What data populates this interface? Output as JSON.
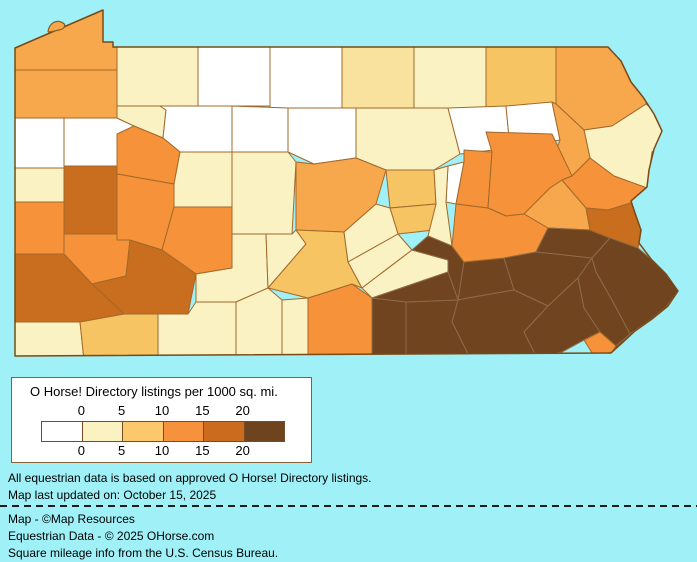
{
  "page": {
    "background_color": "#9ff0f7"
  },
  "map": {
    "region": "pennsylvania-county-choropleth",
    "water_color": "#9ff0f7",
    "state_border_color": "#7a4a15",
    "county_border_color": "#a2692b",
    "brown_region_border_color": "#8d6b49",
    "value_buckets": {
      "0": "#ffffff",
      "0-5": "#fbf2c4",
      "5-10": "#fbc96b",
      "10-15": "#f6913d",
      "15-20": "#ca6b1e",
      "20+": "#6e441e"
    },
    "counties": [
      {
        "id": "erie",
        "color": "#f8a84c"
      },
      {
        "id": "crawford",
        "color": "#f8a84c"
      },
      {
        "id": "warren",
        "color": "#fbf2c4"
      },
      {
        "id": "mckean",
        "color": "#ffffff"
      },
      {
        "id": "potter",
        "color": "#ffffff"
      },
      {
        "id": "tioga",
        "color": "#f8e29e"
      },
      {
        "id": "bradford",
        "color": "#fbf2c4"
      },
      {
        "id": "susquehanna",
        "color": "#f7c463"
      },
      {
        "id": "wayne",
        "color": "#f8a84c"
      },
      {
        "id": "pike",
        "color": "#fbf2c4"
      },
      {
        "id": "mercer",
        "color": "#ffffff"
      },
      {
        "id": "venango",
        "color": "#ffffff"
      },
      {
        "id": "forest",
        "color": "#fbf2c4"
      },
      {
        "id": "elk",
        "color": "#ffffff"
      },
      {
        "id": "cameron",
        "color": "#ffffff"
      },
      {
        "id": "clinton",
        "color": "#ffffff"
      },
      {
        "id": "lycoming",
        "color": "#fbf2c4"
      },
      {
        "id": "sullivan",
        "color": "#ffffff"
      },
      {
        "id": "wyoming",
        "color": "#ffffff"
      },
      {
        "id": "lackawanna",
        "color": "#f8a84c"
      },
      {
        "id": "lawrence",
        "color": "#fbf2c4"
      },
      {
        "id": "butler",
        "color": "#c96d1e"
      },
      {
        "id": "clarion",
        "color": "#f5923a"
      },
      {
        "id": "jefferson",
        "color": "#fbf2c4"
      },
      {
        "id": "clearfield",
        "color": "#fbf2c4"
      },
      {
        "id": "centre",
        "color": "#f8a84c"
      },
      {
        "id": "union",
        "color": "#f7c463"
      },
      {
        "id": "snyder",
        "color": "#f7c463"
      },
      {
        "id": "montour",
        "color": "#ffffff"
      },
      {
        "id": "northumberland",
        "color": "#fbf2c4"
      },
      {
        "id": "columbia",
        "color": "#f5923a"
      },
      {
        "id": "luzerne",
        "color": "#f5923a"
      },
      {
        "id": "carbon",
        "color": "#f8a84c"
      },
      {
        "id": "monroe",
        "color": "#f5923a"
      },
      {
        "id": "beaver",
        "color": "#f5923a"
      },
      {
        "id": "armstrong",
        "color": "#f5923a"
      },
      {
        "id": "indiana",
        "color": "#f5923a"
      },
      {
        "id": "cambria",
        "color": "#fbf2c4"
      },
      {
        "id": "blair",
        "color": "#fbf2c4"
      },
      {
        "id": "allegheny",
        "color": "#f5923a"
      },
      {
        "id": "westmoreland",
        "color": "#c96d1e"
      },
      {
        "id": "washington",
        "color": "#c96d1e"
      },
      {
        "id": "greene",
        "color": "#fbf2c4"
      },
      {
        "id": "fayette",
        "color": "#f7c463"
      },
      {
        "id": "somerset",
        "color": "#fbf2c4"
      },
      {
        "id": "bedford",
        "color": "#fbf2c4"
      },
      {
        "id": "fulton",
        "color": "#fbf2c4"
      },
      {
        "id": "franklin",
        "color": "#f5923a"
      },
      {
        "id": "huntingdon",
        "color": "#f7c463"
      },
      {
        "id": "mifflin",
        "color": "#fbf2c4"
      },
      {
        "id": "juniata",
        "color": "#fbf2c4"
      },
      {
        "id": "perry",
        "color": "#fbf2c4"
      },
      {
        "id": "dauphin",
        "color": "#6f441e"
      },
      {
        "id": "lebanon",
        "color": "#6f441e"
      },
      {
        "id": "schuylkill",
        "color": "#f5923a"
      },
      {
        "id": "berks",
        "color": "#6f441e"
      },
      {
        "id": "lehigh",
        "color": "#6f441e"
      },
      {
        "id": "northampton",
        "color": "#c96d1e"
      },
      {
        "id": "lancaster",
        "color": "#6f441e"
      },
      {
        "id": "york",
        "color": "#6f441e"
      },
      {
        "id": "adams",
        "color": "#6f441e"
      },
      {
        "id": "cumberland",
        "color": "#6f441e"
      },
      {
        "id": "chester",
        "color": "#6f441e"
      },
      {
        "id": "montgomery",
        "color": "#6f441e"
      },
      {
        "id": "bucks",
        "color": "#6f441e"
      },
      {
        "id": "delaware",
        "color": "#f5923a"
      },
      {
        "id": "philadelphia",
        "color": "#6f441e"
      }
    ]
  },
  "legend": {
    "title": "O Horse! Directory listings per 1000 sq. mi.",
    "ticks": [
      "0",
      "5",
      "10",
      "15",
      "20"
    ],
    "swatch_colors": [
      "#ffffff",
      "#fbf2c4",
      "#fbc96b",
      "#f6913d",
      "#ca6b1e",
      "#6e441e"
    ],
    "background": "#ffffff",
    "border_color": "#8b5f33"
  },
  "notes": {
    "line1": "All equestrian data is based on approved O Horse! Directory listings.",
    "line2": "Map last updated on: October 15, 2025"
  },
  "credits": {
    "line1": "Map - ©Map Resources",
    "line2": "Equestrian Data - © 2025 OHorse.com",
    "line3": "Square mileage info from the U.S. Census Bureau."
  }
}
